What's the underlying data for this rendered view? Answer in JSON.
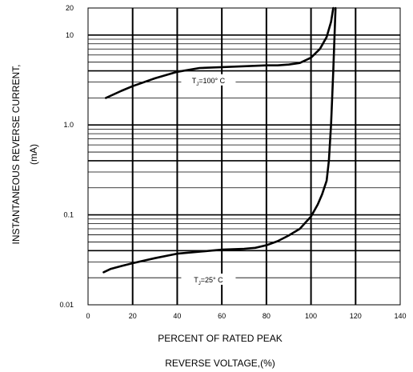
{
  "chart_data": {
    "type": "line",
    "title": "",
    "xlabel_line1": "PERCENT OF RATED PEAK",
    "xlabel_line2": "REVERSE VOLTAGE,(%)",
    "ylabel_line1": "INSTANTANEOUS REVERSE CURRENT,",
    "ylabel_line2": "(mA)",
    "xlim": [
      0,
      140
    ],
    "ylim": [
      0.01,
      20
    ],
    "y_scale": "log",
    "x_ticks": [
      0,
      20,
      40,
      60,
      80,
      100,
      120,
      140
    ],
    "x_tick_labels": [
      "0",
      "20",
      "40",
      "60",
      "80",
      "100",
      "120",
      "140"
    ],
    "y_ticks": [
      0.01,
      0.1,
      1.0,
      10,
      20
    ],
    "y_tick_labels": [
      "0.01",
      "0.1",
      "1.0",
      "10",
      "20"
    ],
    "grid": true,
    "series": [
      {
        "name": "TJ=100° C",
        "label_main": "T",
        "label_sub": "J",
        "label_rest": "=100° C",
        "x": [
          8,
          15,
          20,
          30,
          40,
          50,
          60,
          70,
          80,
          85,
          90,
          95,
          100,
          104,
          107,
          109,
          110
        ],
        "y": [
          2.0,
          2.4,
          2.7,
          3.3,
          3.9,
          4.3,
          4.4,
          4.5,
          4.6,
          4.6,
          4.7,
          4.9,
          5.6,
          7.0,
          9.5,
          14.0,
          20.0
        ]
      },
      {
        "name": "TJ=25° C",
        "label_main": "T",
        "label_sub": "J",
        "label_rest": "=25° C",
        "x": [
          7,
          10,
          15,
          20,
          30,
          40,
          50,
          60,
          70,
          75,
          80,
          85,
          90,
          95,
          100,
          103,
          105,
          107,
          108,
          109,
          110,
          111
        ],
        "y": [
          0.023,
          0.025,
          0.027,
          0.029,
          0.033,
          0.037,
          0.039,
          0.041,
          0.042,
          0.043,
          0.046,
          0.051,
          0.059,
          0.07,
          0.096,
          0.13,
          0.17,
          0.24,
          0.4,
          1.0,
          4.0,
          20.0
        ]
      }
    ]
  }
}
